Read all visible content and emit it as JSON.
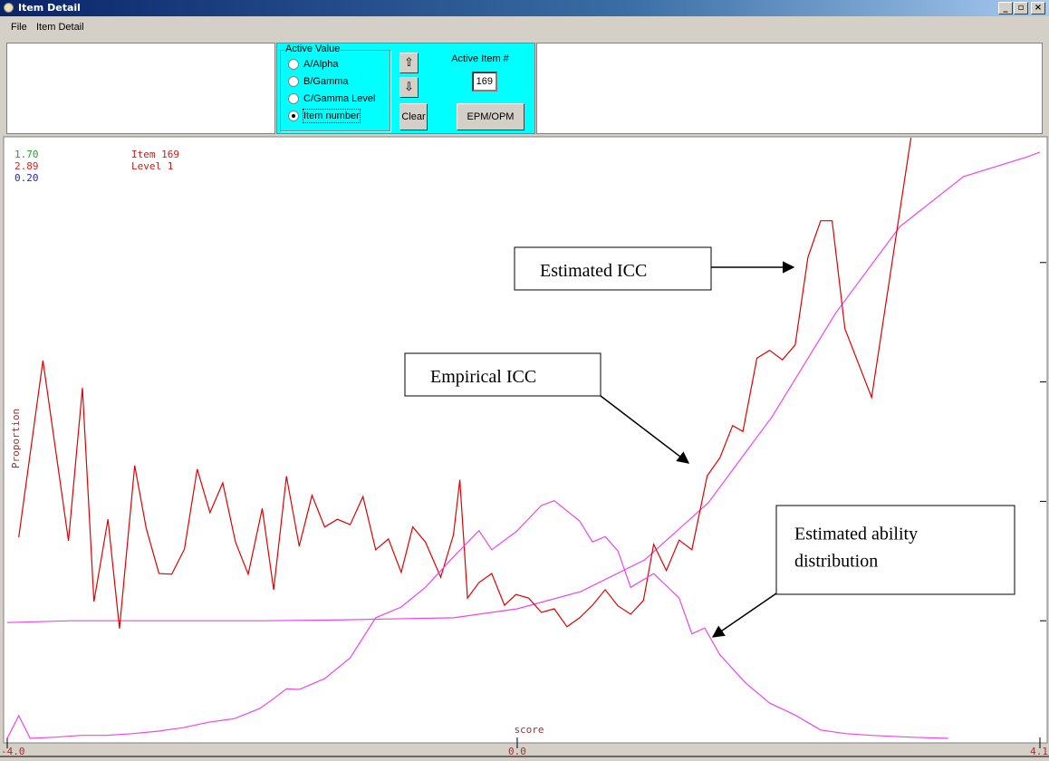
{
  "window": {
    "title": "Item Detail",
    "menu": [
      "File",
      "Item Detail"
    ]
  },
  "controls": {
    "group_label": "Active Value",
    "options": [
      "A/Alpha",
      "B/Gamma",
      "C/Gamma Level",
      "Item number"
    ],
    "selected": 3,
    "active_item_label": "Active Item #",
    "active_item": "169",
    "buttons": {
      "clear": "Clear",
      "epm": "EPM/OPM"
    }
  },
  "chart_data": {
    "type": "line",
    "info": [
      {
        "text": "1.70",
        "color": "#2e9a2e"
      },
      {
        "text": "2.89",
        "color": "#e02020"
      },
      {
        "text": "0.20",
        "color": "#2020e0"
      }
    ],
    "item": "Item 169",
    "level": "Level 1",
    "ylabel": "Proportion",
    "xlabel": "score",
    "xlim": [
      -4.0,
      4.1
    ],
    "xticks": [
      {
        "value": -4,
        "label": "-4.0"
      },
      {
        "value": 0,
        "label": "0.0"
      },
      {
        "value": 4.1,
        "label": "4.1"
      }
    ],
    "ylim": [
      0,
      1
    ],
    "yticks": [
      0.2,
      0.4,
      0.6,
      0.8
    ],
    "series": [
      {
        "color": "#ee44ee",
        "x": [
          -4,
          -3.5,
          -3,
          -2.5,
          -2,
          -1.5,
          -1,
          -0.5,
          0,
          0.5,
          1,
          1.5,
          2,
          2.5,
          3,
          3.5,
          4,
          4.1
        ],
        "values": [
          0.197,
          0.2,
          0.2,
          0.2,
          0.2,
          0.201,
          0.203,
          0.205,
          0.22,
          0.249,
          0.302,
          0.398,
          0.542,
          0.716,
          0.86,
          0.944,
          0.977,
          0.985
        ]
      },
      {
        "color": "#e00000",
        "x": [
          -3.91,
          -3.72,
          -3.52,
          -3.41,
          -3.32,
          -3.21,
          -3.12,
          -3.0,
          -2.91,
          -2.81,
          -2.71,
          -2.61,
          -2.51,
          -2.41,
          -2.31,
          -2.21,
          -2.11,
          -2.0,
          -1.91,
          -1.81,
          -1.71,
          -1.61,
          -1.51,
          -1.41,
          -1.31,
          -1.21,
          -1.11,
          -1.01,
          -0.91,
          -0.82,
          -0.72,
          -0.6,
          -0.5,
          -0.45,
          -0.39,
          -0.3,
          -0.2,
          -0.1,
          -0.01,
          0.09,
          0.19,
          0.29,
          0.39,
          0.49,
          0.59,
          0.69,
          0.79,
          0.89,
          0.99,
          1.07,
          1.17,
          1.27,
          1.37,
          1.49,
          1.59,
          1.69,
          1.77,
          1.88,
          1.98,
          2.08,
          2.18,
          2.28,
          2.38,
          2.47,
          2.57,
          2.78,
          3.09
        ],
        "values": [
          0.34,
          0.636,
          0.334,
          0.59,
          0.232,
          0.37,
          0.187,
          0.46,
          0.355,
          0.279,
          0.278,
          0.32,
          0.454,
          0.381,
          0.431,
          0.332,
          0.278,
          0.388,
          0.252,
          0.442,
          0.325,
          0.41,
          0.357,
          0.37,
          0.361,
          0.408,
          0.319,
          0.337,
          0.281,
          0.357,
          0.332,
          0.273,
          0.344,
          0.436,
          0.238,
          0.264,
          0.279,
          0.226,
          0.244,
          0.238,
          0.214,
          0.22,
          0.19,
          0.205,
          0.226,
          0.252,
          0.225,
          0.211,
          0.234,
          0.328,
          0.284,
          0.335,
          0.319,
          0.443,
          0.473,
          0.527,
          0.517,
          0.64,
          0.653,
          0.637,
          0.662,
          0.809,
          0.87,
          0.87,
          0.689,
          0.574,
          1.012
        ]
      },
      {
        "color": "#ee44ee",
        "x": [
          -4.0,
          -3.91,
          -3.82,
          -3.62,
          -3.42,
          -3.22,
          -3.02,
          -2.82,
          -2.62,
          -2.42,
          -2.22,
          -2.02,
          -1.92,
          -1.81,
          -1.71,
          -1.51,
          -1.31,
          -1.11,
          -0.91,
          -0.72,
          -0.5,
          -0.3,
          -0.2,
          -0.01,
          0.19,
          0.29,
          0.49,
          0.59,
          0.69,
          0.79,
          0.89,
          1.07,
          1.27,
          1.37,
          1.47,
          1.59,
          1.79,
          1.98,
          2.18,
          2.38,
          2.58,
          2.78,
          3.08,
          3.38
        ],
        "values": [
          0.003,
          0.041,
          0.003,
          0.005,
          0.008,
          0.008,
          0.011,
          0.015,
          0.021,
          0.03,
          0.036,
          0.053,
          0.068,
          0.086,
          0.085,
          0.103,
          0.138,
          0.205,
          0.223,
          0.256,
          0.307,
          0.351,
          0.319,
          0.349,
          0.393,
          0.401,
          0.367,
          0.332,
          0.341,
          0.317,
          0.256,
          0.279,
          0.238,
          0.178,
          0.188,
          0.143,
          0.096,
          0.062,
          0.042,
          0.017,
          0.011,
          0.008,
          0.005,
          0.003
        ]
      }
    ],
    "annotations": [
      {
        "lines": [
          "Estimated ICC"
        ]
      },
      {
        "lines": [
          "Empirical ICC"
        ]
      },
      {
        "lines": [
          "Estimated ability",
          "distribution"
        ]
      }
    ]
  }
}
